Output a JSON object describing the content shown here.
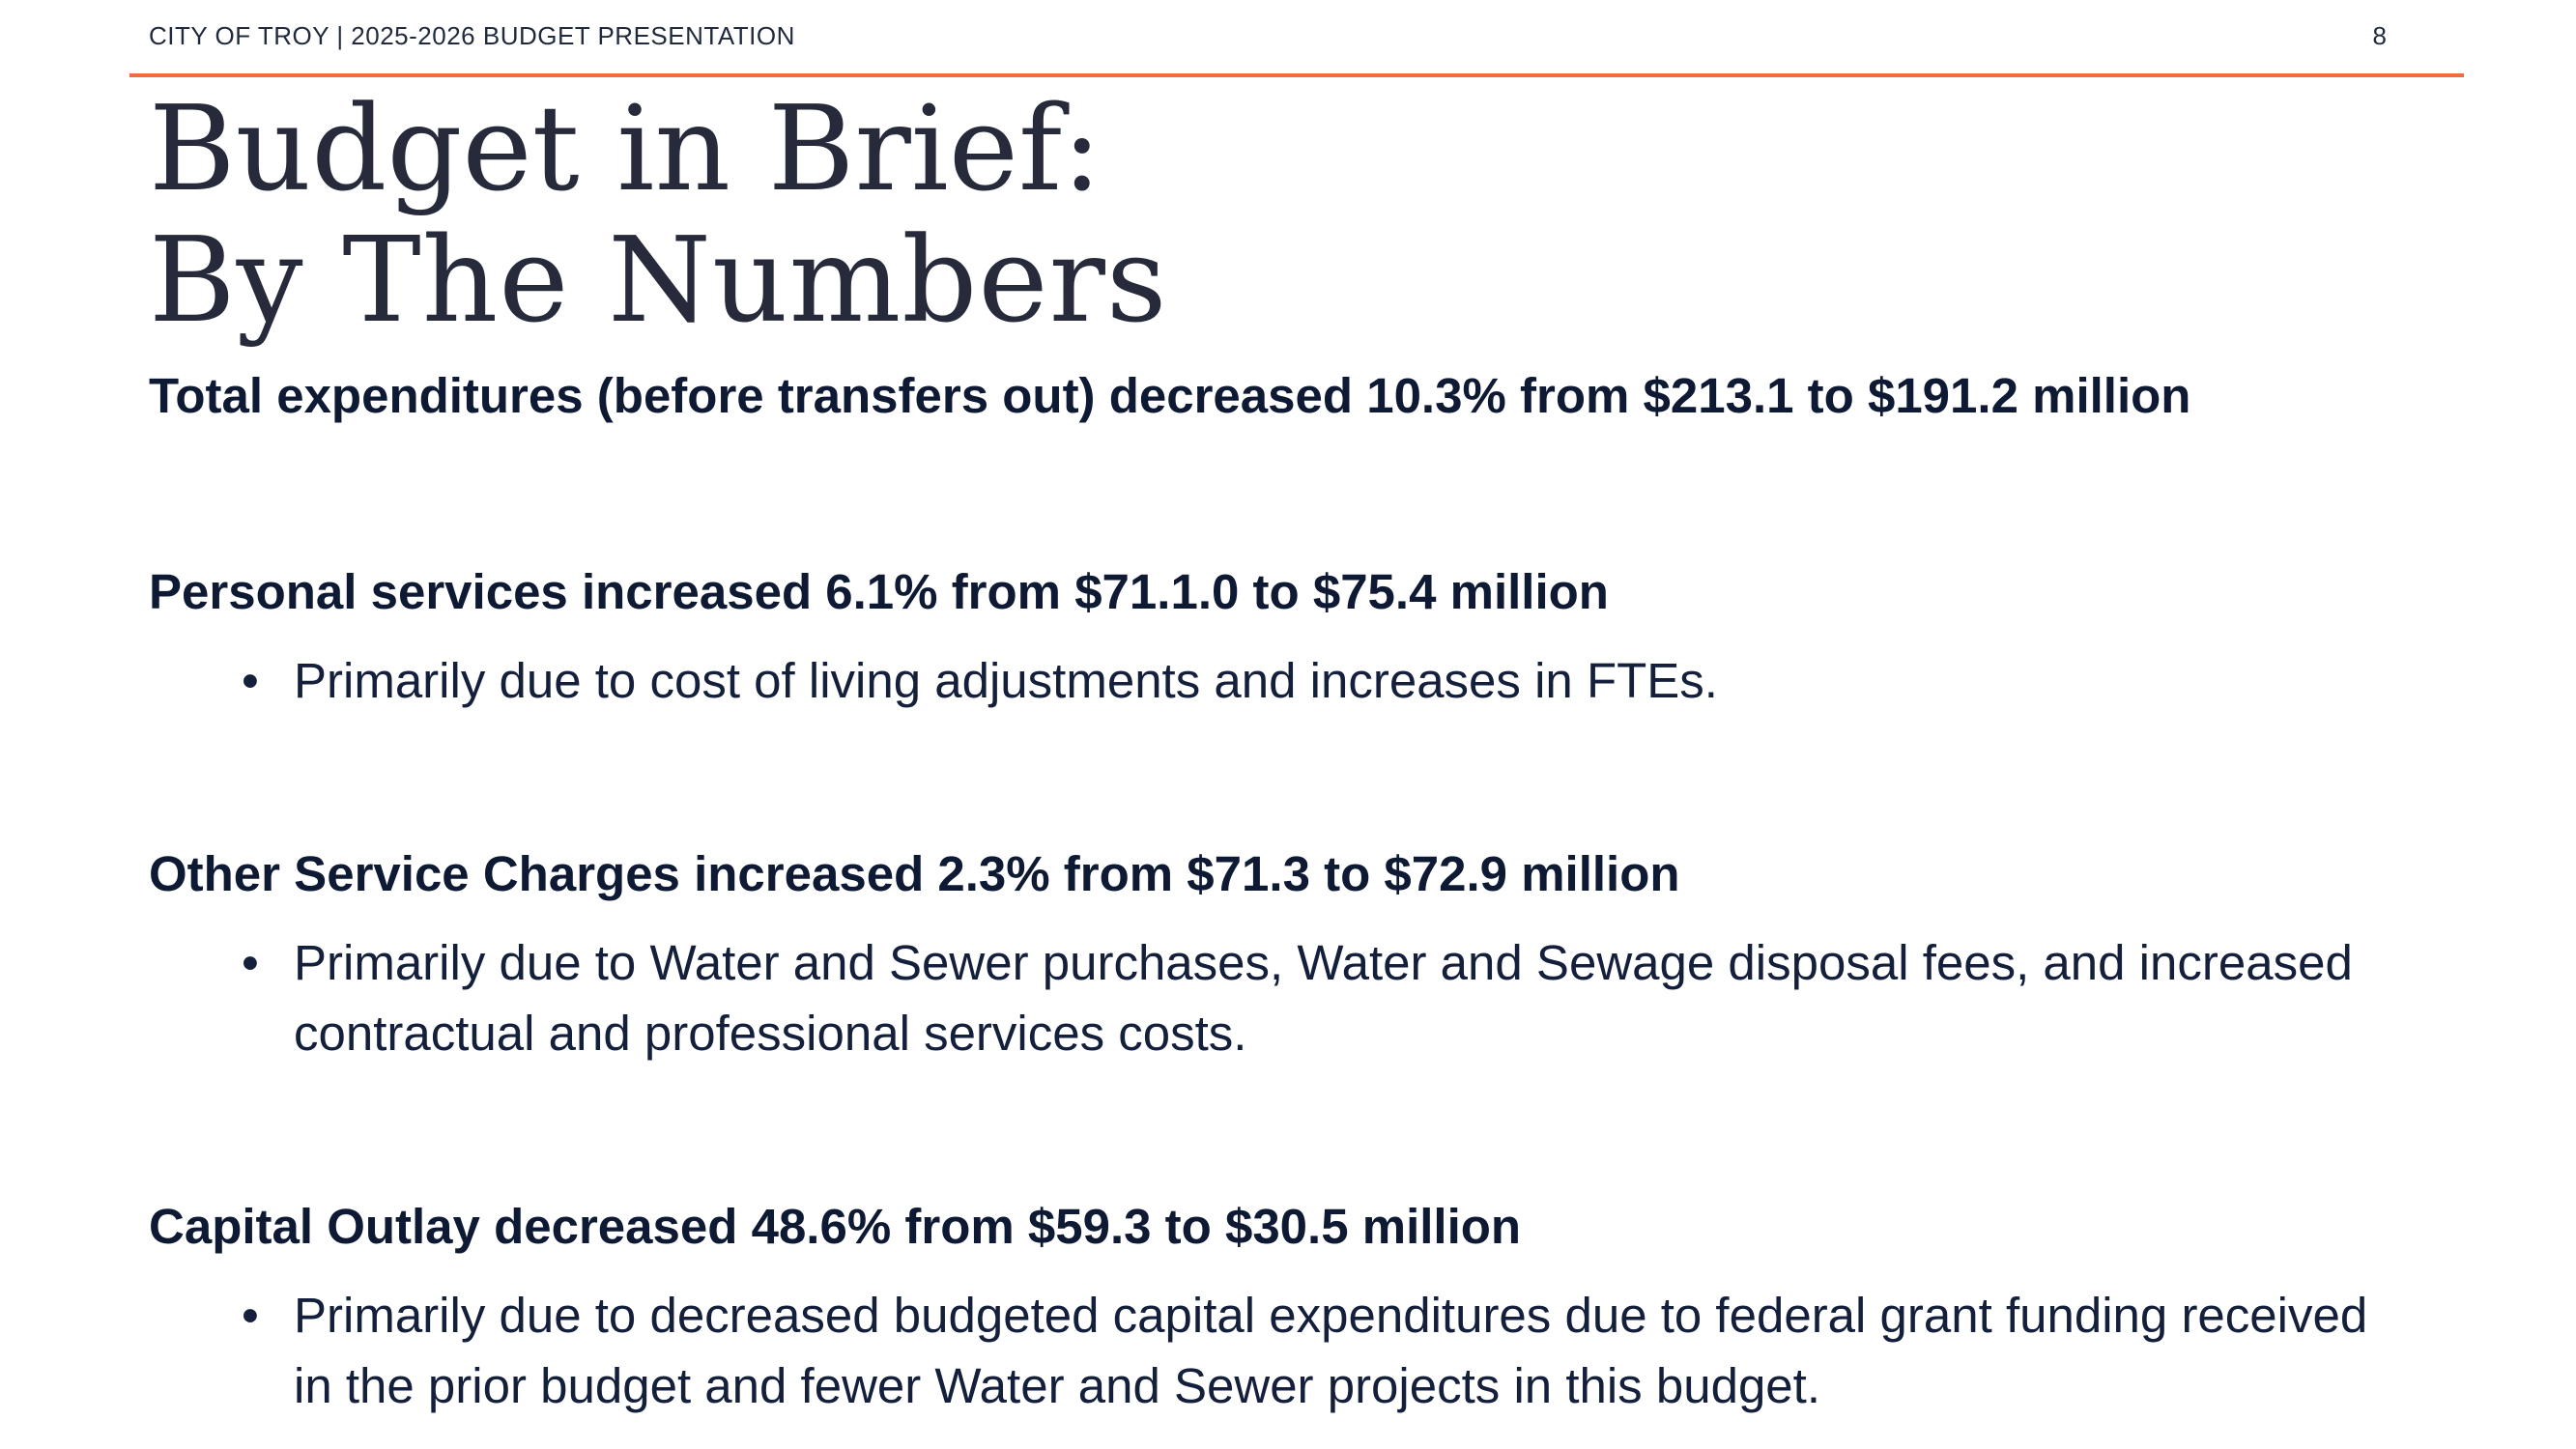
{
  "header": {
    "title": "CITY OF TROY | 2025-2026 BUDGET PRESENTATION",
    "page_number": "8",
    "rule_color": "#f26a3d"
  },
  "slide": {
    "title_line1": "Budget in Brief:",
    "title_line2": "By The Numbers"
  },
  "sections": [
    {
      "heading": "Total expenditures (before transfers out) decreased 10.3% from $213.1 to $191.2 million"
    },
    {
      "heading": "Personal services increased 6.1% from $71.1.0 to $75.4 million",
      "bullet": "Primarily due to cost of living adjustments and increases in FTEs."
    },
    {
      "heading": "Other Service Charges increased 2.3% from $71.3 to $72.9 million",
      "bullet": "Primarily due to Water and Sewer purchases, Water and Sewage disposal fees, and increased contractual and professional services costs."
    },
    {
      "heading": "Capital Outlay decreased 48.6% from $59.3 to $30.5 million",
      "bullet": "Primarily due to decreased budgeted capital expenditures due to federal grant funding received in the prior budget and fewer Water and Sewer projects in this budget."
    }
  ],
  "bullet_glyph": "•",
  "colors": {
    "text": "#0e1a33",
    "accent": "#f26a3d"
  }
}
